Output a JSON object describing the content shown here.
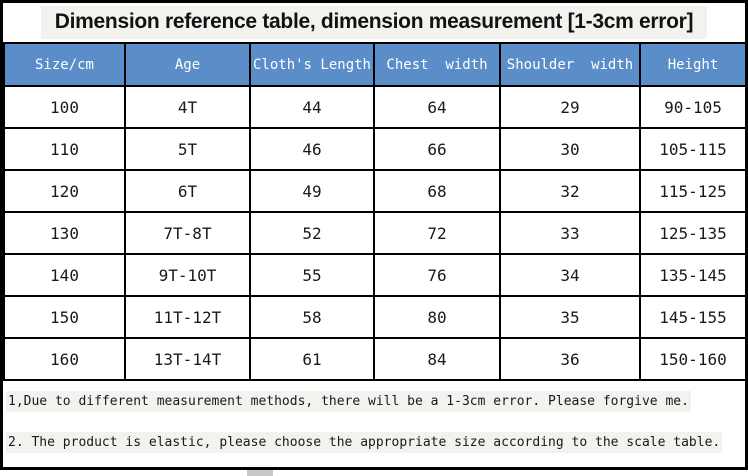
{
  "title": "Dimension reference table, dimension measurement [1-3cm error]",
  "table": {
    "headers": [
      "Size/cm",
      "Age",
      "Cloth's Length",
      "Chest  width",
      "Shoulder  width",
      "Height"
    ],
    "rows": [
      [
        "100",
        "4T",
        "44",
        "64",
        "29",
        "90-105"
      ],
      [
        "110",
        "5T",
        "46",
        "66",
        "30",
        "105-115"
      ],
      [
        "120",
        "6T",
        "49",
        "68",
        "32",
        "115-125"
      ],
      [
        "130",
        "7T-8T",
        "52",
        "72",
        "33",
        "125-135"
      ],
      [
        "140",
        "9T-10T",
        "55",
        "76",
        "34",
        "135-145"
      ],
      [
        "150",
        "11T-12T",
        "58",
        "80",
        "35",
        "145-155"
      ],
      [
        "160",
        "13T-14T",
        "61",
        "84",
        "36",
        "150-160"
      ]
    ]
  },
  "notes": [
    "1,Due to different measurement methods, there will be a 1-3cm error. Please forgive me.",
    "2. The product is elastic, please choose the appropriate size according to the scale table."
  ],
  "colors": {
    "header_bg": "#5b8ec9",
    "header_text": "#ffffff",
    "border": "#000000",
    "highlight_bg": "#f3f2ef"
  },
  "chart_data": {
    "type": "table",
    "title": "Dimension reference table, dimension measurement [1-3cm error]",
    "columns": [
      "Size/cm",
      "Age",
      "Cloth's Length",
      "Chest width",
      "Shoulder width",
      "Height"
    ],
    "rows": [
      [
        "100",
        "4T",
        44,
        64,
        29,
        "90-105"
      ],
      [
        "110",
        "5T",
        46,
        66,
        30,
        "105-115"
      ],
      [
        "120",
        "6T",
        49,
        68,
        32,
        "115-125"
      ],
      [
        "130",
        "7T-8T",
        52,
        72,
        33,
        "125-135"
      ],
      [
        "140",
        "9T-10T",
        55,
        76,
        34,
        "135-145"
      ],
      [
        "150",
        "11T-12T",
        58,
        80,
        35,
        "145-155"
      ],
      [
        "160",
        "13T-14T",
        61,
        84,
        36,
        "150-160"
      ]
    ]
  }
}
